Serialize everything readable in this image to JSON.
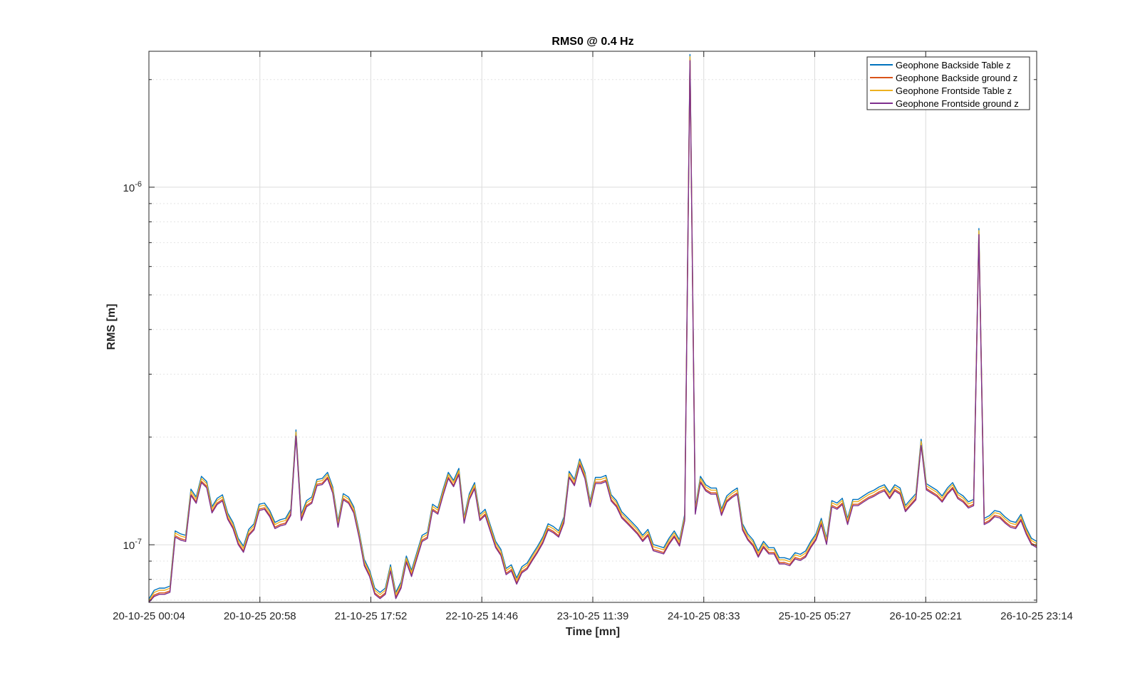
{
  "chart_data": {
    "type": "line",
    "title": "RMS0 @ 0.4 Hz",
    "xlabel": "Time [mn]",
    "ylabel": "RMS [m]",
    "yscale": "log",
    "ylim": [
      6.9e-08,
      2.4e-06
    ],
    "grid": true,
    "legend_position": "top-right",
    "x_ticks": [
      "20-10-25 00:04",
      "20-10-25 20:58",
      "21-10-25 17:52",
      "22-10-25 14:46",
      "23-10-25 11:39",
      "24-10-25 08:33",
      "25-10-25 05:27",
      "26-10-25 02:21",
      "26-10-25 23:14"
    ],
    "y_ticks": [
      {
        "value": 1e-07,
        "base": "10",
        "exp": "-7"
      },
      {
        "value": 1e-06,
        "base": "10",
        "exp": "-6"
      }
    ],
    "x_start": "20-10-25 00:04",
    "x_end": "26-10-25 23:14",
    "series": [
      {
        "name": "Geophone Backside Table z",
        "color": "#0072BD"
      },
      {
        "name": "Geophone Backside ground z",
        "color": "#D95319"
      },
      {
        "name": "Geophone Frontside Table z",
        "color": "#EDB120"
      },
      {
        "name": "Geophone Frontside ground z",
        "color": "#7E2F8E"
      }
    ],
    "base_values": [
      6.9e-08,
      7.3e-08,
      7.4e-08,
      7.4e-08,
      7.5e-08,
      1.07e-07,
      1.05e-07,
      1.04e-07,
      1.4e-07,
      1.33e-07,
      1.52e-07,
      1.47e-07,
      1.25e-07,
      1.32e-07,
      1.35e-07,
      1.2e-07,
      1.13e-07,
      1.02e-07,
      9.7e-08,
      1.08e-07,
      1.12e-07,
      1.27e-07,
      1.28e-07,
      1.22e-07,
      1.13e-07,
      1.15e-07,
      1.16e-07,
      1.23e-07,
      2.05e-07,
      1.19e-07,
      1.3e-07,
      1.33e-07,
      1.49e-07,
      1.5e-07,
      1.56e-07,
      1.42e-07,
      1.14e-07,
      1.36e-07,
      1.33e-07,
      1.25e-07,
      1.07e-07,
      8.9e-08,
      8.3e-08,
      7.4e-08,
      7.2e-08,
      7.4e-08,
      8.6e-08,
      7.2e-08,
      7.7e-08,
      9.1e-08,
      8.3e-08,
      9.3e-08,
      1.04e-07,
      1.06e-07,
      1.27e-07,
      1.24e-07,
      1.4e-07,
      1.56e-07,
      1.48e-07,
      1.6e-07,
      1.17e-07,
      1.36e-07,
      1.46e-07,
      1.19e-07,
      1.23e-07,
      1.11e-07,
      1e-07,
      9.5e-08,
      8.4e-08,
      8.6e-08,
      7.9e-08,
      8.5e-08,
      8.7e-08,
      9.2e-08,
      9.7e-08,
      1.03e-07,
      1.12e-07,
      1.1e-07,
      1.07e-07,
      1.17e-07,
      1.57e-07,
      1.49e-07,
      1.7e-07,
      1.56e-07,
      1.3e-07,
      1.51e-07,
      1.51e-07,
      1.53e-07,
      1.35e-07,
      1.3e-07,
      1.21e-07,
      1.17e-07,
      1.13e-07,
      1.09e-07,
      1.04e-07,
      1.08e-07,
      9.8e-08,
      9.7e-08,
      9.6e-08,
      1.02e-07,
      1.07e-07,
      1.01e-07,
      1.19e-07,
      2.3e-06,
      1.24e-07,
      1.52e-07,
      1.44e-07,
      1.41e-07,
      1.41e-07,
      1.23e-07,
      1.34e-07,
      1.38e-07,
      1.41e-07,
      1.12e-07,
      1.05e-07,
      1.01e-07,
      9.4e-08,
      1e-07,
      9.6e-08,
      9.6e-08,
      9e-08,
      9e-08,
      8.9e-08,
      9.3e-08,
      9.2e-08,
      9.4e-08,
      1e-07,
      1.05e-07,
      1.16e-07,
      1.02e-07,
      1.3e-07,
      1.28e-07,
      1.32e-07,
      1.16e-07,
      1.31e-07,
      1.31e-07,
      1.34e-07,
      1.37e-07,
      1.39e-07,
      1.42e-07,
      1.44e-07,
      1.37e-07,
      1.44e-07,
      1.41e-07,
      1.26e-07,
      1.31e-07,
      1.36e-07,
      1.93e-07,
      1.45e-07,
      1.42e-07,
      1.39e-07,
      1.34e-07,
      1.41e-07,
      1.46e-07,
      1.37e-07,
      1.34e-07,
      1.29e-07,
      1.31e-07,
      7.5e-07,
      1.16e-07,
      1.18e-07,
      1.22e-07,
      1.21e-07,
      1.17e-07,
      1.14e-07,
      1.13e-07,
      1.19e-07,
      1.09e-07,
      1.02e-07,
      1e-07
    ],
    "series_factors": [
      1.022,
      0.991,
      1.008,
      0.982
    ]
  }
}
